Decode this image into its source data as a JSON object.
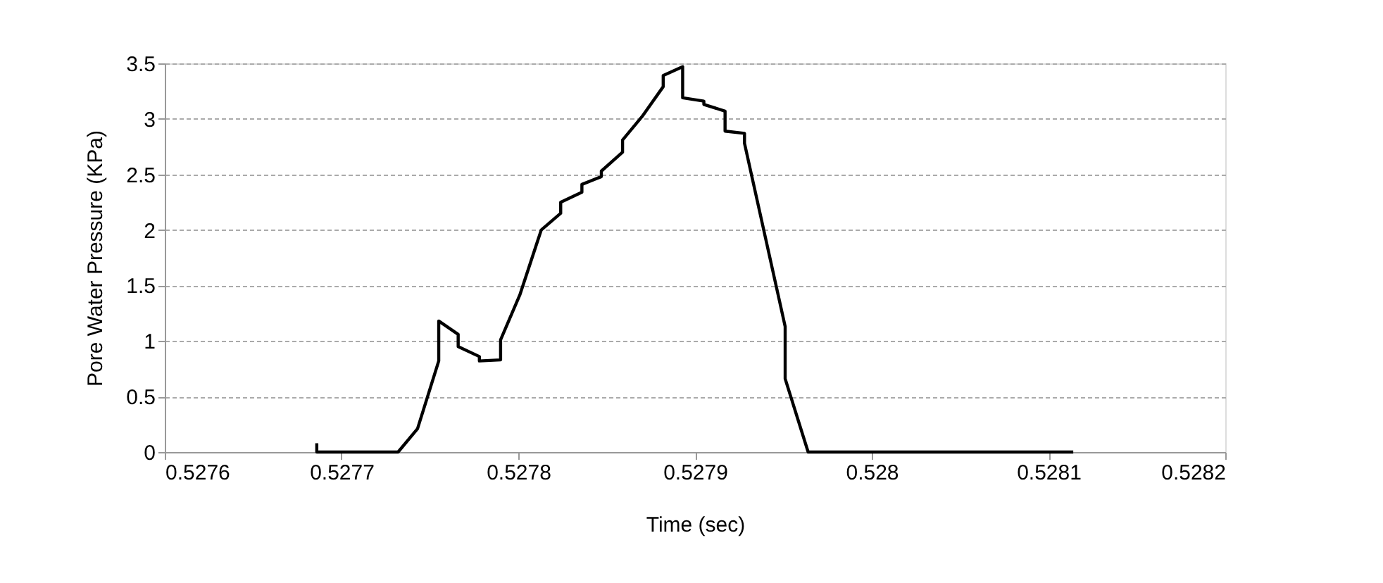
{
  "chart_data": {
    "type": "line",
    "xlabel": "Time (sec)",
    "ylabel": "Pore Water Pressure (KPa)",
    "xlim": [
      0.5276,
      0.5282
    ],
    "xticks": [
      0.5276,
      0.5277,
      0.5278,
      0.5279,
      0.528,
      0.5281,
      0.5282
    ],
    "ylim": [
      0,
      3.5
    ],
    "yticks": [
      0,
      0.5,
      1,
      1.5,
      2,
      2.5,
      3,
      3.5
    ],
    "grid": "y",
    "marker": "none",
    "line_style": "solid",
    "legend": false,
    "x": [
      0.527686,
      0.527686,
      0.527732,
      0.527743,
      0.527755,
      0.527755,
      0.527766,
      0.527766,
      0.527778,
      0.527778,
      0.52779,
      0.52779,
      0.527801,
      0.527813,
      0.527824,
      0.527824,
      0.527836,
      0.527836,
      0.527847,
      0.527847,
      0.527859,
      0.527859,
      0.52787,
      0.527882,
      0.527882,
      0.527893,
      0.527893,
      0.527905,
      0.527905,
      0.527917,
      0.527917,
      0.527928,
      0.527928,
      0.527951,
      0.527951,
      0.527964,
      0.528114
    ],
    "series": [
      {
        "color": "#000000",
        "values": [
          0.08,
          0,
          0,
          0.21,
          0.82,
          1.18,
          1.06,
          0.95,
          0.86,
          0.82,
          0.83,
          1.01,
          1.42,
          2.0,
          2.15,
          2.25,
          2.34,
          2.41,
          2.48,
          2.53,
          2.7,
          2.81,
          3.02,
          3.29,
          3.39,
          3.47,
          3.19,
          3.16,
          3.13,
          3.07,
          2.89,
          2.87,
          2.78,
          1.13,
          0.66,
          0,
          0
        ]
      }
    ]
  }
}
